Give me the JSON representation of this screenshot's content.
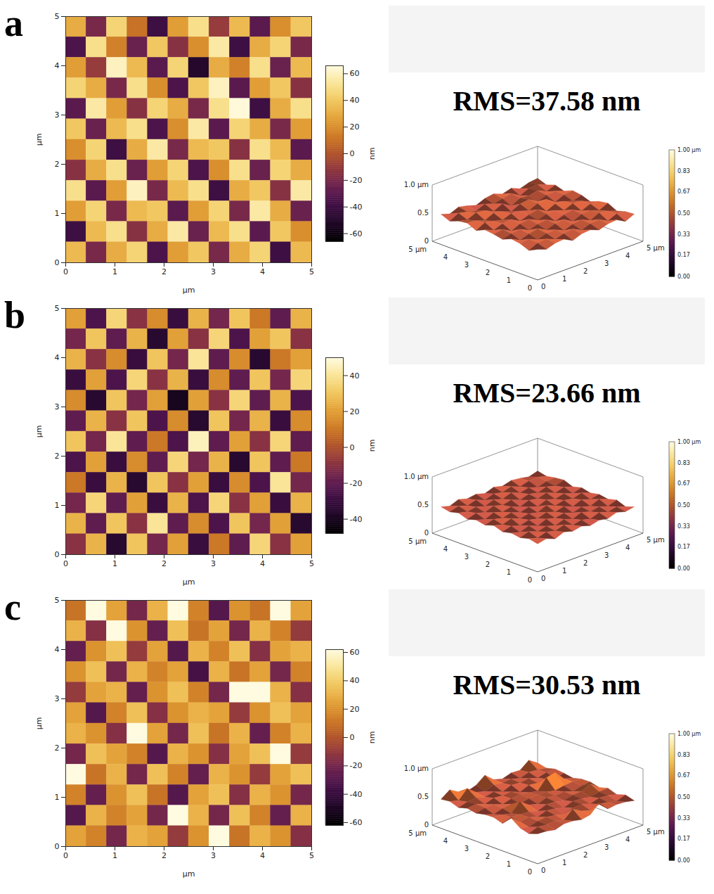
{
  "chart_data": [
    {
      "type": "heatmap",
      "panel": "a",
      "annotation": "RMS=37.58 nm",
      "x_label": "µm",
      "y_label": "µm",
      "xlim": [
        0,
        5
      ],
      "ylim": [
        0,
        5
      ],
      "xticks": [
        0,
        1,
        2,
        3,
        4,
        5
      ],
      "yticks": [
        0,
        1,
        2,
        3,
        4,
        5
      ],
      "cells": [
        [
          30,
          -20,
          45,
          10,
          -40,
          25,
          50,
          -10,
          35,
          -30,
          20,
          40
        ],
        [
          -35,
          50,
          15,
          -25,
          40,
          -15,
          20,
          55,
          -40,
          30,
          45,
          -20
        ],
        [
          25,
          -10,
          60,
          35,
          -30,
          45,
          -50,
          30,
          15,
          50,
          -25,
          35
        ],
        [
          45,
          30,
          -20,
          50,
          20,
          -35,
          40,
          60,
          -30,
          25,
          40,
          -15
        ],
        [
          -30,
          55,
          25,
          -15,
          45,
          30,
          -20,
          50,
          65,
          -40,
          30,
          50
        ],
        [
          40,
          -25,
          35,
          50,
          -35,
          20,
          55,
          -30,
          45,
          30,
          -20,
          25
        ],
        [
          20,
          45,
          -40,
          30,
          55,
          -20,
          35,
          40,
          -15,
          50,
          35,
          -30
        ],
        [
          -15,
          30,
          50,
          -25,
          25,
          45,
          -35,
          20,
          50,
          -25,
          45,
          30
        ],
        [
          50,
          -30,
          25,
          60,
          -20,
          35,
          50,
          -40,
          30,
          40,
          -15,
          55
        ],
        [
          25,
          45,
          -20,
          35,
          40,
          -30,
          25,
          45,
          -20,
          55,
          30,
          -25
        ],
        [
          -40,
          35,
          50,
          -15,
          30,
          55,
          -25,
          35,
          50,
          -30,
          40,
          20
        ],
        [
          35,
          -20,
          30,
          45,
          -35,
          25,
          40,
          -20,
          30,
          45,
          -40,
          35
        ]
      ],
      "colorbar": {
        "label": "nm",
        "range": [
          -66,
          66
        ],
        "ticks": [
          -60,
          -40,
          -20,
          0,
          20,
          40,
          60
        ]
      },
      "surface": {
        "type": "surface",
        "xlim": [
          0,
          5
        ],
        "ylim": [
          0,
          5
        ],
        "zlim": [
          0,
          1
        ],
        "base": 0.45,
        "xticks": [
          0,
          1,
          2,
          3,
          4,
          {
            "value": 5,
            "label": "5 µm"
          }
        ],
        "yticks": [
          0,
          1,
          2,
          3,
          4,
          {
            "value": 5,
            "label": "5 µm"
          }
        ],
        "zticks": [
          0,
          0.5,
          {
            "value": 1,
            "label": "1.0 µm"
          }
        ],
        "colorbar": {
          "range": [
            0,
            1
          ],
          "ticks": [
            {
              "value": 0,
              "label": "0.00"
            },
            0.17,
            0.33,
            {
              "value": 0.5,
              "label": "0.50"
            },
            0.67,
            0.83,
            {
              "value": 1,
              "label": "1.00 µm"
            }
          ]
        }
      }
    },
    {
      "type": "heatmap",
      "panel": "b",
      "annotation": "RMS=23.66 nm",
      "x_label": "µm",
      "y_label": "µm",
      "xlim": [
        0,
        5
      ],
      "ylim": [
        0,
        5
      ],
      "xticks": [
        0,
        1,
        2,
        3,
        4,
        5
      ],
      "yticks": [
        0,
        1,
        2,
        3,
        4,
        5
      ],
      "cells": [
        [
          20,
          -25,
          35,
          -10,
          15,
          -30,
          25,
          -15,
          30,
          10,
          -20,
          25
        ],
        [
          -15,
          30,
          -20,
          25,
          -35,
          20,
          -10,
          35,
          -25,
          20,
          30,
          -10
        ],
        [
          25,
          -10,
          15,
          -30,
          30,
          -15,
          40,
          -20,
          15,
          -35,
          10,
          20
        ],
        [
          -30,
          20,
          -25,
          35,
          -10,
          25,
          -30,
          15,
          -20,
          30,
          -15,
          35
        ],
        [
          15,
          -35,
          30,
          -15,
          20,
          -40,
          20,
          -10,
          35,
          -20,
          25,
          -25
        ],
        [
          -20,
          25,
          -10,
          30,
          -25,
          15,
          -35,
          30,
          -15,
          25,
          -30,
          15
        ],
        [
          30,
          -15,
          40,
          -20,
          10,
          -25,
          45,
          -20,
          20,
          -10,
          35,
          -20
        ],
        [
          -25,
          20,
          -30,
          15,
          -20,
          35,
          -15,
          25,
          -35,
          30,
          -20,
          10
        ],
        [
          10,
          -30,
          25,
          -35,
          30,
          -10,
          20,
          -30,
          15,
          -25,
          40,
          -15
        ],
        [
          -15,
          35,
          -20,
          20,
          -30,
          25,
          -25,
          35,
          -10,
          20,
          -30,
          25
        ],
        [
          25,
          -20,
          30,
          -10,
          40,
          -20,
          15,
          -25,
          30,
          -15,
          20,
          -35
        ],
        [
          -10,
          25,
          -35,
          30,
          -15,
          20,
          -30,
          10,
          -20,
          35,
          -10,
          20
        ]
      ],
      "colorbar": {
        "label": "nm",
        "range": [
          -48,
          50
        ],
        "ticks": [
          -40,
          -20,
          0,
          20,
          40
        ]
      },
      "surface": {
        "type": "surface",
        "xlim": [
          0,
          5
        ],
        "ylim": [
          0,
          5
        ],
        "zlim": [
          0,
          1
        ],
        "base": 0.45,
        "xticks": [
          0,
          1,
          2,
          3,
          4,
          {
            "value": 5,
            "label": "5 µm"
          }
        ],
        "yticks": [
          0,
          1,
          2,
          3,
          4,
          {
            "value": 5,
            "label": "5 µm"
          }
        ],
        "zticks": [
          0,
          0.5,
          {
            "value": 1,
            "label": "1.0 µm"
          }
        ],
        "colorbar": {
          "range": [
            0,
            1
          ],
          "ticks": [
            {
              "value": 0,
              "label": "0.00"
            },
            0.17,
            0.33,
            {
              "value": 0.5,
              "label": "0.50"
            },
            0.67,
            0.83,
            {
              "value": 1,
              "label": "1.00 µm"
            }
          ]
        }
      }
    },
    {
      "type": "heatmap",
      "panel": "c",
      "annotation": "RMS=30.53 nm",
      "x_label": "µm",
      "y_label": "µm",
      "xlim": [
        0,
        5
      ],
      "ylim": [
        0,
        5
      ],
      "xticks": [
        0,
        1,
        2,
        3,
        4,
        5
      ],
      "yticks": [
        0,
        1,
        2,
        3,
        4,
        5
      ],
      "cells": [
        [
          10,
          120,
          25,
          -20,
          30,
          150,
          15,
          -30,
          20,
          10,
          130,
          25
        ],
        [
          30,
          -15,
          140,
          20,
          -25,
          35,
          10,
          25,
          -20,
          30,
          15,
          -10
        ],
        [
          -25,
          20,
          35,
          -10,
          25,
          -30,
          30,
          15,
          35,
          -15,
          25,
          30
        ],
        [
          20,
          35,
          -20,
          30,
          15,
          25,
          -35,
          30,
          10,
          25,
          -20,
          15
        ],
        [
          -10,
          25,
          30,
          -25,
          20,
          35,
          15,
          -20,
          160,
          200,
          30,
          -15
        ],
        [
          25,
          -30,
          15,
          35,
          -15,
          20,
          30,
          25,
          -10,
          20,
          35,
          25
        ],
        [
          30,
          20,
          -15,
          140,
          25,
          -20,
          35,
          10,
          30,
          -25,
          15,
          30
        ],
        [
          -20,
          35,
          25,
          15,
          -30,
          30,
          20,
          -15,
          25,
          35,
          110,
          -10
        ],
        [
          130,
          10,
          30,
          -20,
          35,
          15,
          -25,
          30,
          20,
          -10,
          25,
          35
        ],
        [
          15,
          -25,
          20,
          35,
          10,
          -30,
          25,
          35,
          -15,
          30,
          20,
          -20
        ],
        [
          -30,
          30,
          15,
          25,
          -20,
          120,
          30,
          -20,
          35,
          15,
          -25,
          30
        ],
        [
          25,
          15,
          -20,
          30,
          25,
          -10,
          20,
          170,
          10,
          30,
          20,
          -15
        ]
      ],
      "colorbar": {
        "label": "nm",
        "range": [
          -62,
          62
        ],
        "ticks": [
          -60,
          -40,
          -20,
          0,
          20,
          40,
          60
        ]
      },
      "surface": {
        "type": "surface",
        "xlim": [
          0,
          5
        ],
        "ylim": [
          0,
          5
        ],
        "zlim": [
          0,
          1
        ],
        "base": 0.45,
        "xticks": [
          0,
          1,
          2,
          3,
          4,
          {
            "value": 5,
            "label": "5 µm"
          }
        ],
        "yticks": [
          0,
          1,
          2,
          3,
          4,
          {
            "value": 5,
            "label": "5 µm"
          }
        ],
        "zticks": [
          0,
          0.5,
          {
            "value": 1,
            "label": "1.0 µm"
          }
        ],
        "colorbar": {
          "range": [
            0,
            1
          ],
          "ticks": [
            {
              "value": 0,
              "label": "0.00"
            },
            0.17,
            0.33,
            {
              "value": 0.5,
              "label": "0.50"
            },
            0.67,
            0.83,
            {
              "value": 1,
              "label": "1.00 µm"
            }
          ]
        }
      }
    }
  ]
}
